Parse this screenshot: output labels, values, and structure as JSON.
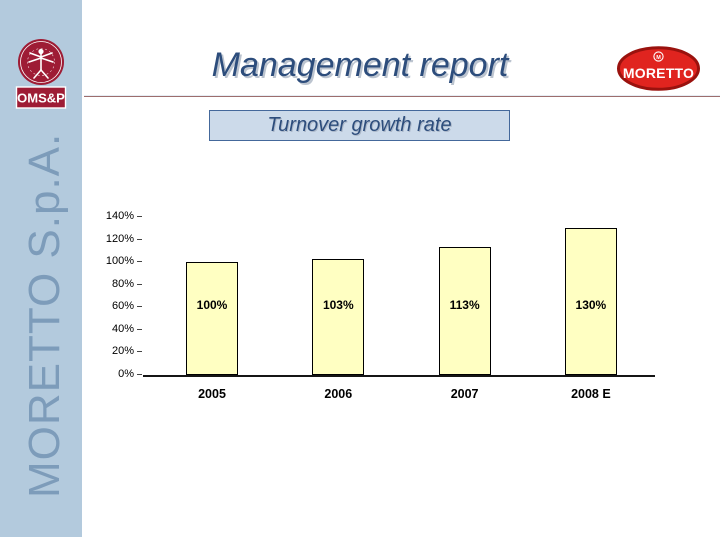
{
  "slide": {
    "title": "Management report",
    "subtitle_box": "Turnover growth rate",
    "sidebar_text": "MORETTO S.p.A."
  },
  "logos": {
    "omsp": {
      "label": "OMS&P",
      "color": "#9e1c35"
    },
    "moretto": {
      "label": "MORETTO",
      "emblem": "M",
      "color": "#e0241f"
    }
  },
  "colors": {
    "sidebar_bg": "#b3cadd",
    "sidebar_text": "#7d9cba",
    "title_blue": "#2d4d7c",
    "subtitle_box_bg": "#ccdaea",
    "subtitle_box_border": "#44689b",
    "rule_line": "#9d6d6d"
  },
  "chart_data": {
    "type": "bar",
    "title": "Turnover growth rate",
    "categories": [
      "2005",
      "2006",
      "2007",
      "2008 E"
    ],
    "values": [
      100,
      103,
      113,
      130
    ],
    "value_labels": [
      "100%",
      "103%",
      "113%",
      "130%"
    ],
    "yticks": [
      "0%",
      "20%",
      "40%",
      "60%",
      "80%",
      "100%",
      "120%",
      "140%"
    ],
    "ytick_step": 20,
    "ylim": [
      0,
      140
    ],
    "xlabel": "",
    "ylabel": "",
    "grid": false,
    "legend": false,
    "bar_fill": "#ffffc2",
    "bar_border": "#000000"
  }
}
